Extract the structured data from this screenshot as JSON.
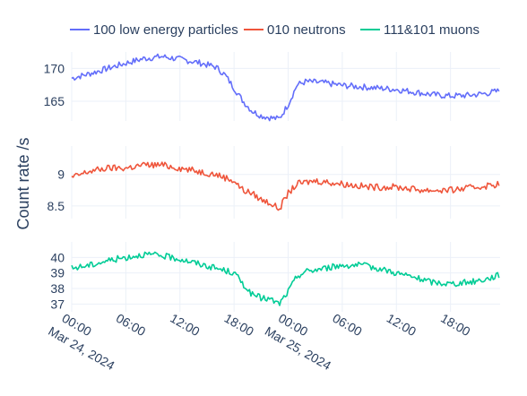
{
  "chart_data": {
    "type": "line",
    "ylabel": "Count rate  /s",
    "legend_placement": "top",
    "grid": true,
    "x_range": [
      "2024-03-24T00:00",
      "2024-03-25T23:30"
    ],
    "x_ticks": [
      {
        "t": "2024-03-24T00:00",
        "line1": "00:00",
        "line2": "Mar 24, 2024"
      },
      {
        "t": "2024-03-24T06:00",
        "line1": "06:00",
        "line2": ""
      },
      {
        "t": "2024-03-24T12:00",
        "line1": "12:00",
        "line2": ""
      },
      {
        "t": "2024-03-24T18:00",
        "line1": "18:00",
        "line2": ""
      },
      {
        "t": "2024-03-25T00:00",
        "line1": "00:00",
        "line2": "Mar 25, 2024"
      },
      {
        "t": "2024-03-25T06:00",
        "line1": "06:00",
        "line2": ""
      },
      {
        "t": "2024-03-25T12:00",
        "line1": "12:00",
        "line2": ""
      },
      {
        "t": "2024-03-25T18:00",
        "line1": "18:00",
        "line2": ""
      }
    ],
    "series": [
      {
        "name": "100 low energy particles",
        "color": "#636efa",
        "ylim": [
          162,
          172.5
        ],
        "yticks": [
          {
            "v": 165,
            "label": "165"
          },
          {
            "v": 170,
            "label": "170"
          }
        ],
        "points": [
          [
            "2024-03-24T00:00",
            168.5
          ],
          [
            "2024-03-24T02:00",
            169.2
          ],
          [
            "2024-03-24T04:00",
            170.0
          ],
          [
            "2024-03-24T06:00",
            170.8
          ],
          [
            "2024-03-24T08:00",
            171.5
          ],
          [
            "2024-03-24T10:00",
            171.8
          ],
          [
            "2024-03-24T12:00",
            171.4
          ],
          [
            "2024-03-24T14:00",
            170.9
          ],
          [
            "2024-03-24T16:00",
            170.2
          ],
          [
            "2024-03-24T17:00",
            169.0
          ],
          [
            "2024-03-24T18:00",
            167.0
          ],
          [
            "2024-03-24T19:00",
            165.0
          ],
          [
            "2024-03-24T20:00",
            163.5
          ],
          [
            "2024-03-24T21:00",
            162.8
          ],
          [
            "2024-03-24T22:00",
            162.5
          ],
          [
            "2024-03-24T23:00",
            162.3
          ],
          [
            "2024-03-25T00:00",
            164.5
          ],
          [
            "2024-03-25T01:00",
            167.5
          ],
          [
            "2024-03-25T02:00",
            168.0
          ],
          [
            "2024-03-25T04:00",
            167.8
          ],
          [
            "2024-03-25T06:00",
            167.4
          ],
          [
            "2024-03-25T08:00",
            167.2
          ],
          [
            "2024-03-25T10:00",
            167.0
          ],
          [
            "2024-03-25T12:00",
            166.8
          ],
          [
            "2024-03-25T14:00",
            166.4
          ],
          [
            "2024-03-25T16:00",
            166.0
          ],
          [
            "2024-03-25T18:00",
            165.8
          ],
          [
            "2024-03-25T20:00",
            165.9
          ],
          [
            "2024-03-25T22:00",
            166.2
          ],
          [
            "2024-03-25T23:30",
            166.6
          ]
        ]
      },
      {
        "name": "010 neutrons",
        "color": "#ef553b",
        "ylim": [
          8.3,
          9.45
        ],
        "yticks": [
          {
            "v": 8.5,
            "label": "8.5"
          },
          {
            "v": 9,
            "label": "9"
          }
        ],
        "points": [
          [
            "2024-03-24T00:00",
            8.95
          ],
          [
            "2024-03-24T02:00",
            9.05
          ],
          [
            "2024-03-24T04:00",
            9.1
          ],
          [
            "2024-03-24T06:00",
            9.1
          ],
          [
            "2024-03-24T08:00",
            9.15
          ],
          [
            "2024-03-24T10:00",
            9.15
          ],
          [
            "2024-03-24T12:00",
            9.1
          ],
          [
            "2024-03-24T14:00",
            9.05
          ],
          [
            "2024-03-24T16:00",
            9.0
          ],
          [
            "2024-03-24T18:00",
            8.9
          ],
          [
            "2024-03-24T19:00",
            8.75
          ],
          [
            "2024-03-24T20:00",
            8.7
          ],
          [
            "2024-03-24T21:00",
            8.6
          ],
          [
            "2024-03-24T22:00",
            8.55
          ],
          [
            "2024-03-24T23:00",
            8.45
          ],
          [
            "2024-03-25T00:00",
            8.7
          ],
          [
            "2024-03-25T01:00",
            8.85
          ],
          [
            "2024-03-25T03:00",
            8.9
          ],
          [
            "2024-03-25T06:00",
            8.85
          ],
          [
            "2024-03-25T09:00",
            8.8
          ],
          [
            "2024-03-25T12:00",
            8.8
          ],
          [
            "2024-03-25T15:00",
            8.75
          ],
          [
            "2024-03-25T18:00",
            8.75
          ],
          [
            "2024-03-25T21:00",
            8.8
          ],
          [
            "2024-03-25T23:30",
            8.85
          ]
        ]
      },
      {
        "name": "111&101 muons",
        "color": "#00cc96",
        "ylim": [
          36.5,
          41
        ],
        "yticks": [
          {
            "v": 37,
            "label": "37"
          },
          {
            "v": 38,
            "label": "38"
          },
          {
            "v": 39,
            "label": "39"
          },
          {
            "v": 40,
            "label": "40"
          }
        ],
        "points": [
          [
            "2024-03-24T00:00",
            39.3
          ],
          [
            "2024-03-24T02:00",
            39.5
          ],
          [
            "2024-03-24T04:00",
            39.8
          ],
          [
            "2024-03-24T06:00",
            40.0
          ],
          [
            "2024-03-24T08:00",
            40.2
          ],
          [
            "2024-03-24T10:00",
            40.1
          ],
          [
            "2024-03-24T12:00",
            39.9
          ],
          [
            "2024-03-24T14:00",
            39.6
          ],
          [
            "2024-03-24T16:00",
            39.3
          ],
          [
            "2024-03-24T18:00",
            39.0
          ],
          [
            "2024-03-24T19:00",
            38.3
          ],
          [
            "2024-03-24T20:00",
            37.6
          ],
          [
            "2024-03-24T21:00",
            37.4
          ],
          [
            "2024-03-24T22:00",
            37.3
          ],
          [
            "2024-03-24T23:00",
            37.0
          ],
          [
            "2024-03-25T00:00",
            37.8
          ],
          [
            "2024-03-25T01:00",
            38.8
          ],
          [
            "2024-03-25T02:00",
            39.1
          ],
          [
            "2024-03-25T04:00",
            39.3
          ],
          [
            "2024-03-25T06:00",
            39.5
          ],
          [
            "2024-03-25T08:00",
            39.5
          ],
          [
            "2024-03-25T10:00",
            39.3
          ],
          [
            "2024-03-25T12:00",
            39.0
          ],
          [
            "2024-03-25T14:00",
            38.7
          ],
          [
            "2024-03-25T16:00",
            38.4
          ],
          [
            "2024-03-25T18:00",
            38.3
          ],
          [
            "2024-03-25T20:00",
            38.4
          ],
          [
            "2024-03-25T22:00",
            38.6
          ],
          [
            "2024-03-25T23:30",
            38.9
          ]
        ]
      }
    ]
  }
}
